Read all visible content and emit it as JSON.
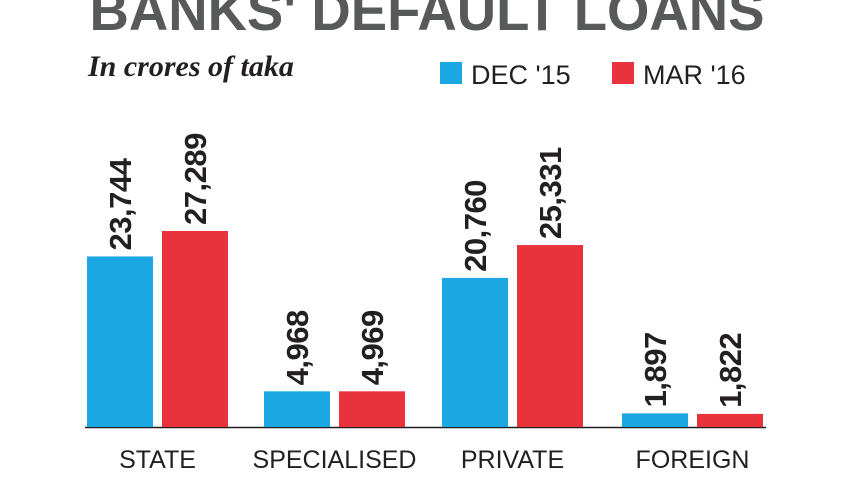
{
  "chart_data": {
    "type": "bar",
    "title": "BANKS' DEFAULT LOANS",
    "subtitle": "In crores of taka",
    "categories": [
      "STATE",
      "SPECIALISED",
      "PRIVATE",
      "FOREIGN"
    ],
    "series": [
      {
        "name": "DEC '15",
        "color": "#1ba8e2",
        "values": [
          23744,
          4968,
          20760,
          1897
        ],
        "value_labels": [
          "23,744",
          "4,968",
          "20,760",
          "1,897"
        ]
      },
      {
        "name": "MAR '16",
        "color": "#e8323c",
        "values": [
          27289,
          4969,
          25331,
          1822
        ],
        "value_labels": [
          "27,289",
          "4,969",
          "25,331",
          "1,822"
        ]
      }
    ]
  }
}
